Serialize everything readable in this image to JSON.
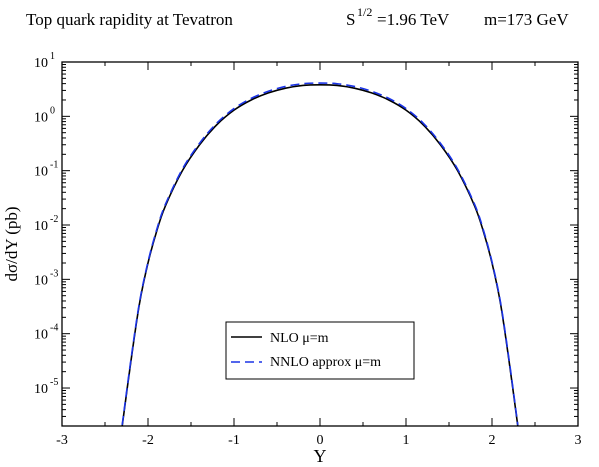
{
  "chart_data": {
    "type": "line",
    "title": {
      "main": "Top quark rapidity at  Tevatron",
      "energy_prefix": "S",
      "energy_exp": "1/2",
      "energy_value": "=1.96 TeV",
      "mass": "m=173 GeV"
    },
    "xlabel": "Y",
    "ylabel": "dσ/dY (pb)",
    "xlim": [
      -3,
      3
    ],
    "ylim": [
      2e-06,
      10
    ],
    "yscale": "log",
    "x_ticks": [
      {
        "value": -3,
        "label": "-3"
      },
      {
        "value": -2,
        "label": "-2"
      },
      {
        "value": -1,
        "label": "-1"
      },
      {
        "value": 0,
        "label": "0"
      },
      {
        "value": 1,
        "label": "1"
      },
      {
        "value": 2,
        "label": "2"
      },
      {
        "value": 3,
        "label": "3"
      }
    ],
    "y_ticks": [
      {
        "exp": 1,
        "base": "10",
        "exp_label": "1"
      },
      {
        "exp": 0,
        "base": "10",
        "exp_label": "0"
      },
      {
        "exp": -1,
        "base": "10",
        "exp_label": "-1"
      },
      {
        "exp": -2,
        "base": "10",
        "exp_label": "-2"
      },
      {
        "exp": -3,
        "base": "10",
        "exp_label": "-3"
      },
      {
        "exp": -4,
        "base": "10",
        "exp_label": "-4"
      },
      {
        "exp": -5,
        "base": "10",
        "exp_label": "-5"
      }
    ],
    "grid": false,
    "legend_position": "center-bottom",
    "series": [
      {
        "name": "NLO μ=m",
        "color": "#000000",
        "dash": "solid",
        "x": [
          -2.3,
          -2.2,
          -2.1,
          -2.0,
          -1.9,
          -1.8,
          -1.6,
          -1.4,
          -1.2,
          -1.0,
          -0.8,
          -0.6,
          -0.4,
          -0.2,
          0.0,
          0.2,
          0.4,
          0.6,
          0.8,
          1.0,
          1.2,
          1.4,
          1.6,
          1.8,
          1.9,
          2.0,
          2.1,
          2.2,
          2.3
        ],
        "y": [
          2e-06,
          3e-05,
          0.00035,
          0.002,
          0.0076,
          0.022,
          0.1,
          0.3,
          0.7,
          1.3,
          2.0,
          2.7,
          3.3,
          3.7,
          3.8,
          3.7,
          3.3,
          2.7,
          2.0,
          1.3,
          0.7,
          0.3,
          0.1,
          0.022,
          0.0076,
          0.002,
          0.00035,
          3e-05,
          2e-06
        ]
      },
      {
        "name": "NNLO approx μ=m",
        "color": "#1a33e6",
        "dash": "dashed",
        "x": [
          -2.3,
          -2.2,
          -2.1,
          -2.0,
          -1.9,
          -1.8,
          -1.6,
          -1.4,
          -1.2,
          -1.0,
          -0.8,
          -0.6,
          -0.4,
          -0.2,
          0.0,
          0.2,
          0.4,
          0.6,
          0.8,
          1.0,
          1.2,
          1.4,
          1.6,
          1.8,
          1.9,
          2.0,
          2.1,
          2.2,
          2.3
        ],
        "y": [
          2.1e-06,
          3.2e-05,
          0.00037,
          0.0021,
          0.0081,
          0.0235,
          0.107,
          0.32,
          0.75,
          1.39,
          2.14,
          2.9,
          3.55,
          3.98,
          4.1,
          3.98,
          3.55,
          2.9,
          2.14,
          1.39,
          0.75,
          0.32,
          0.107,
          0.0235,
          0.0081,
          0.0021,
          0.00037,
          3.2e-05,
          2.1e-06
        ]
      }
    ]
  }
}
